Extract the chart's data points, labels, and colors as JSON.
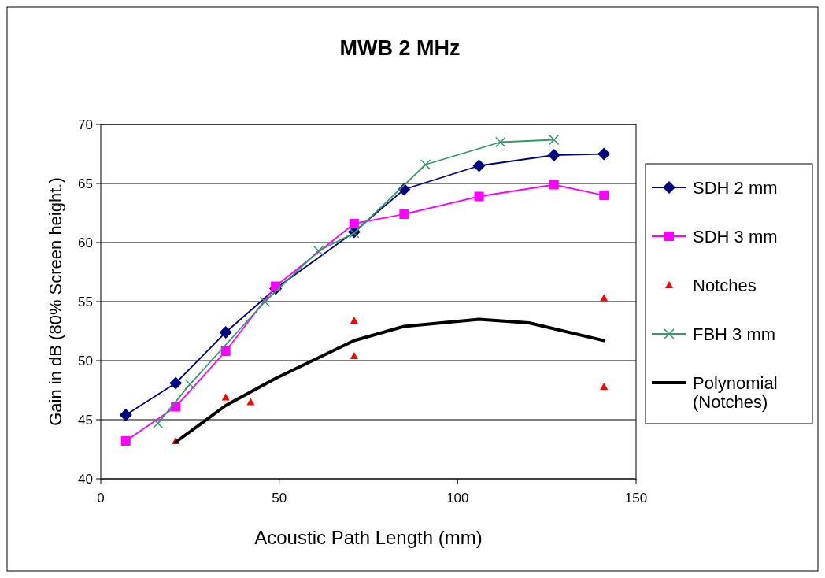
{
  "chart_data": {
    "type": "line",
    "title": "MWB 2 MHz",
    "xlabel": "Acoustic Path Length (mm)",
    "ylabel": "Gain in dB (80% Screen height.)",
    "xlim": [
      0,
      150
    ],
    "xticks": [
      0,
      50,
      100,
      150
    ],
    "ylim": [
      40,
      70
    ],
    "yticks": [
      40,
      45,
      50,
      55,
      60,
      65,
      70
    ],
    "grid": "y",
    "legend": "right",
    "series": [
      {
        "name": "SDH 2 mm",
        "color": "#000080",
        "marker": "diamond",
        "x": [
          7,
          21,
          35,
          49,
          71,
          85,
          106,
          127,
          141
        ],
        "values": [
          45.4,
          48.1,
          52.4,
          56.1,
          60.9,
          64.5,
          66.5,
          67.4,
          67.5
        ]
      },
      {
        "name": "SDH 3 mm",
        "color": "#ff00ff",
        "marker": "square",
        "x": [
          7,
          21,
          35,
          49,
          71,
          85,
          106,
          127,
          141
        ],
        "values": [
          43.2,
          46.1,
          50.8,
          56.3,
          61.6,
          62.4,
          63.9,
          64.9,
          64.0
        ]
      },
      {
        "name": "Notches",
        "type": "scatter",
        "color": "#ff0000",
        "marker": "triangle",
        "x": [
          21,
          35,
          42,
          71,
          71,
          141,
          141
        ],
        "values": [
          43.2,
          46.9,
          46.5,
          53.4,
          50.4,
          55.3,
          47.8
        ]
      },
      {
        "name": "FBH 3 mm",
        "color": "#339966",
        "marker": "cross",
        "x": [
          16,
          25,
          46,
          61,
          71,
          91,
          112,
          127
        ],
        "values": [
          44.7,
          48.0,
          55.0,
          59.3,
          60.8,
          66.6,
          68.5,
          68.7
        ]
      },
      {
        "name": "Polynomial (Notches)",
        "color": "#000000",
        "marker": "none",
        "x": [
          21,
          35,
          49,
          71,
          85,
          106,
          120,
          141
        ],
        "values": [
          43.1,
          46.2,
          48.5,
          51.7,
          52.9,
          53.5,
          53.2,
          51.7
        ]
      }
    ]
  }
}
